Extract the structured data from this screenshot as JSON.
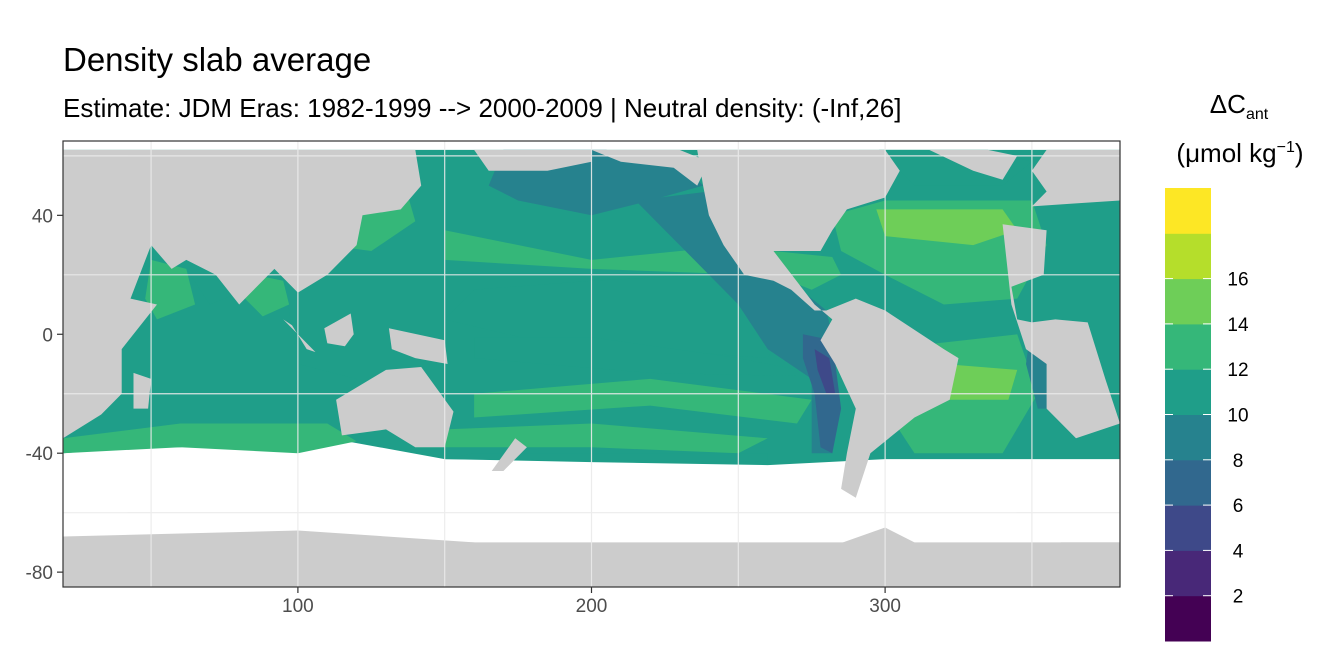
{
  "chart_data": {
    "type": "heatmap",
    "title": "Density slab average",
    "subtitle": "Estimate: JDM Eras: 1982-1999 --> 2000-2009 | Neutral density: (-Inf,26]",
    "x_ticks": [
      100,
      200,
      300
    ],
    "y_ticks": [
      40,
      0,
      -40,
      -80
    ],
    "xlim": [
      20,
      380
    ],
    "ylim": [
      -85,
      65
    ],
    "grid": true,
    "legend": {
      "placement": "right",
      "title_symbol": "ΔC",
      "title_subscript": "ant",
      "units_main": "(μmol kg",
      "units_exp": "−1",
      "units_close": ")",
      "breaks": [
        2,
        4,
        6,
        8,
        10,
        12,
        14,
        16
      ],
      "colors": [
        "#440154",
        "#482878",
        "#3e4989",
        "#31688e",
        "#26828e",
        "#1f9e89",
        "#35b779",
        "#6ece58",
        "#b5de2b",
        "#fde725"
      ]
    },
    "map_colors": {
      "land": "#cccccc",
      "no_data": "#ffffff",
      "panel_border": "#333333",
      "grid": "#ebebeb"
    },
    "field_description": "Gridded ΔCant values over the global ocean; highest (14-16) in North Atlantic subtropical gyre and South Atlantic gyre, lowest (2-6) along the eastern tropical Pacific off South America; Southern Ocean south of ~-45 masked."
  }
}
